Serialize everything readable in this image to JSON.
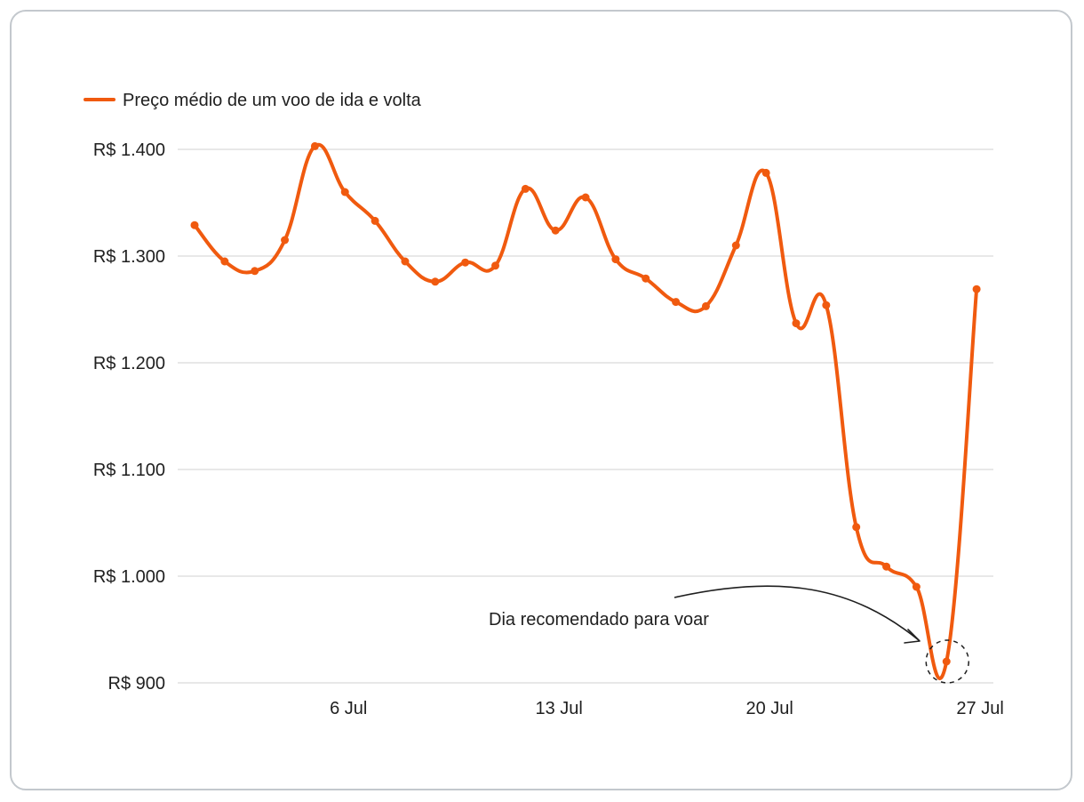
{
  "chart_data": {
    "type": "line",
    "series": [
      {
        "name": "Preço médio de um voo de ida e volta",
        "color": "#f05a0f",
        "values": [
          1329,
          1295,
          1286,
          1315,
          1403,
          1360,
          1333,
          1295,
          1276,
          1294,
          1291,
          1363,
          1324,
          1355,
          1297,
          1279,
          1257,
          1253,
          1310,
          1378,
          1237,
          1254,
          1046,
          1009,
          990,
          920,
          1269
        ]
      }
    ],
    "x": [
      1,
      2,
      3,
      4,
      5,
      6,
      7,
      8,
      9,
      10,
      11,
      12,
      13,
      14,
      15,
      16,
      17,
      18,
      19,
      20,
      21,
      22,
      23,
      24,
      25,
      26,
      27
    ],
    "xtick_values": [
      6,
      13,
      20,
      27
    ],
    "xtick_labels": [
      "6 Jul",
      "13 Jul",
      "20 Jul",
      "27 Jul"
    ],
    "ytick_values": [
      1400,
      1300,
      1200,
      1100,
      1000,
      900
    ],
    "ytick_labels": [
      "R$ 1.400",
      "R$ 1.300",
      "R$ 1.200",
      "R$ 1.100",
      "R$ 1.000",
      "R$ 900"
    ],
    "ylim": [
      900,
      1400
    ],
    "grid": "horizontal",
    "legend_position": "top-left",
    "annotation": {
      "text": "Dia recomendado para voar",
      "target_x": 26,
      "target_y": 920
    }
  }
}
